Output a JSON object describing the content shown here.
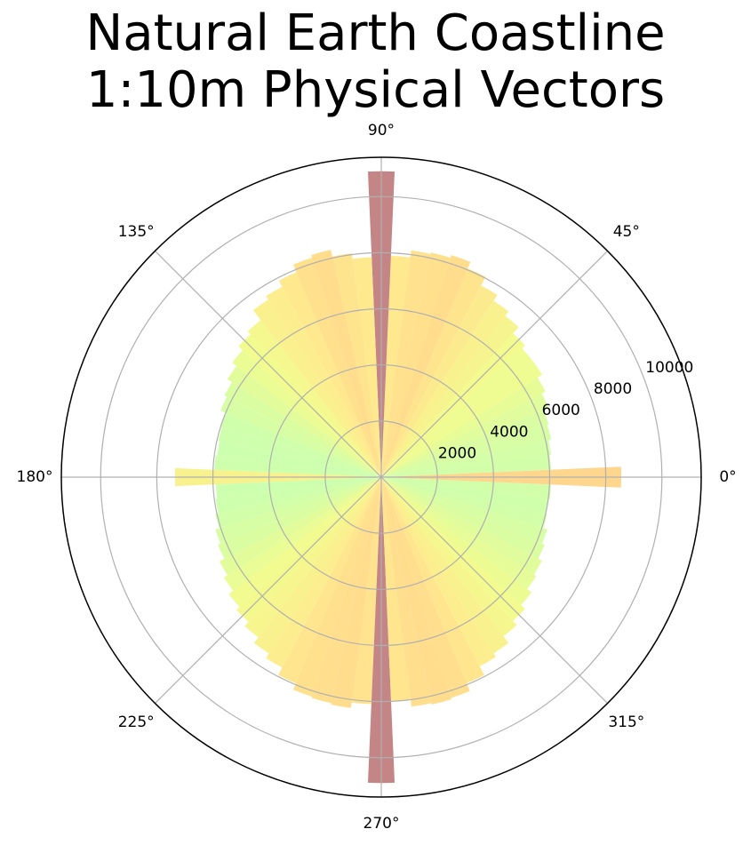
{
  "title_lines": [
    "Natural Earth Coastline",
    "1:10m Physical Vectors"
  ],
  "chart_data": {
    "type": "polar-bar",
    "title": "Natural Earth Coastline 1:10m Physical Vectors",
    "theta_unit": "degrees",
    "theta_tick_labels": [
      "0°",
      "45°",
      "90°",
      "135°",
      "180°",
      "225°",
      "270°",
      "315°"
    ],
    "r_tick_labels": [
      "2000",
      "4000",
      "6000",
      "8000",
      "10000"
    ],
    "r_ticks": [
      2000,
      4000,
      6000,
      8000,
      10000
    ],
    "r_max": 11400,
    "grid": true,
    "bin_width_deg": 5,
    "bin_centers_deg": [
      0,
      5,
      10,
      15,
      20,
      25,
      30,
      35,
      40,
      45,
      50,
      55,
      60,
      65,
      70,
      75,
      80,
      85,
      90,
      95,
      100,
      105,
      110,
      115,
      120,
      125,
      130,
      135,
      140,
      145,
      150,
      155,
      160,
      165,
      170,
      175,
      180,
      185,
      190,
      195,
      200,
      205,
      210,
      215,
      220,
      225,
      230,
      235,
      240,
      245,
      250,
      255,
      260,
      265,
      270,
      275,
      280,
      285,
      290,
      295,
      300,
      305,
      310,
      315,
      320,
      325,
      330,
      335,
      340,
      345,
      350,
      355
    ],
    "values": [
      8550,
      6050,
      6100,
      6200,
      6250,
      6450,
      6600,
      6800,
      6800,
      6950,
      7250,
      7450,
      7700,
      8050,
      8300,
      8200,
      8150,
      7900,
      10900,
      7850,
      8050,
      8300,
      8200,
      7900,
      7650,
      7500,
      7050,
      6900,
      6700,
      6500,
      6300,
      6200,
      6000,
      5950,
      5900,
      5950,
      7350,
      5900,
      5950,
      6050,
      6200,
      6300,
      6500,
      6650,
      6850,
      7000,
      7200,
      7450,
      7650,
      7950,
      8200,
      8250,
      8300,
      8100,
      10900,
      8000,
      8250,
      8300,
      8250,
      7950,
      7600,
      7450,
      7150,
      6950,
      6750,
      6550,
      6450,
      6300,
      6200,
      6050,
      6000,
      6050
    ],
    "colormap": [
      "#c3ffa0",
      "#f0fa7a",
      "#ffe47a",
      "#ffc478",
      "#f9a57a",
      "#b87070"
    ],
    "bar_alpha": 0.85
  }
}
